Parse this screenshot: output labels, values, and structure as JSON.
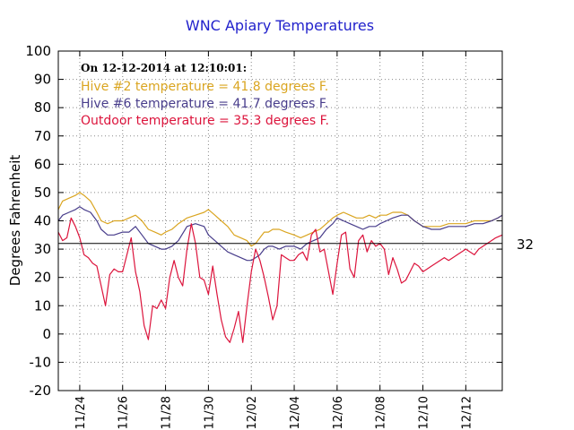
{
  "chart_data": {
    "type": "line",
    "title": "WNC Apiary Temperatures",
    "ylabel": "Degrees Fahrenheit",
    "xlabel": "",
    "ylim": [
      -20,
      100
    ],
    "yticks": [
      -20,
      -10,
      0,
      10,
      20,
      30,
      40,
      50,
      60,
      70,
      80,
      90,
      100
    ],
    "xlim": [
      0,
      20.7
    ],
    "xticks": [
      {
        "x": 1,
        "label": "11/24"
      },
      {
        "x": 3,
        "label": "11/26"
      },
      {
        "x": 5,
        "label": "11/28"
      },
      {
        "x": 7,
        "label": "11/30"
      },
      {
        "x": 9,
        "label": "12/02"
      },
      {
        "x": 11,
        "label": "12/04"
      },
      {
        "x": 13,
        "label": "12/06"
      },
      {
        "x": 15,
        "label": "12/08"
      },
      {
        "x": 17,
        "label": "12/10"
      },
      {
        "x": 19,
        "label": "12/12"
      }
    ],
    "grid": true,
    "reference_line": {
      "value": 32,
      "label": "32"
    },
    "annotation": {
      "timestamp": "On 12-12-2014 at 12:10:01:",
      "lines": [
        "Hive #2 temperature = 41.8 degrees F.",
        "Hive #6 temperature = 41.7 degrees F.",
        "Outdoor temperature = 35.3 degrees F."
      ]
    },
    "series": [
      {
        "name": "Hive #2",
        "color": "#daa520",
        "x": [
          0,
          0.2,
          0.5,
          0.8,
          1.0,
          1.2,
          1.5,
          1.8,
          2.0,
          2.3,
          2.6,
          3.0,
          3.3,
          3.6,
          3.9,
          4.2,
          4.5,
          4.8,
          5.0,
          5.3,
          5.6,
          6.0,
          6.4,
          6.8,
          7.0,
          7.3,
          7.6,
          7.9,
          8.2,
          8.5,
          8.8,
          9.0,
          9.2,
          9.4,
          9.6,
          9.8,
          10.0,
          10.3,
          10.6,
          11.0,
          11.3,
          11.6,
          11.9,
          12.2,
          12.5,
          12.8,
          13.0,
          13.3,
          13.6,
          13.9,
          14.2,
          14.5,
          14.8,
          15.0,
          15.3,
          15.6,
          16.0,
          16.3,
          16.6,
          17.0,
          17.4,
          17.8,
          18.2,
          18.6,
          19.0,
          19.4,
          19.8,
          20.2,
          20.5,
          20.7
        ],
        "values": [
          44,
          47,
          48,
          49,
          50,
          49,
          47,
          43,
          40,
          39,
          40,
          40,
          41,
          42,
          40,
          37,
          36,
          35,
          36,
          37,
          39,
          41,
          42,
          43,
          44,
          42,
          40,
          38,
          35,
          34,
          33,
          31,
          32,
          34,
          36,
          36,
          37,
          37,
          36,
          35,
          34,
          35,
          36,
          37,
          39,
          41,
          42,
          43,
          42,
          41,
          41,
          42,
          41,
          42,
          42,
          43,
          43,
          42,
          40,
          38,
          38,
          38,
          39,
          39,
          39,
          40,
          40,
          40,
          41,
          42
        ],
        "display": "41.8"
      },
      {
        "name": "Hive #6",
        "color": "#483d8b",
        "x": [
          0,
          0.2,
          0.5,
          0.8,
          1.0,
          1.2,
          1.5,
          1.8,
          2.0,
          2.3,
          2.6,
          3.0,
          3.3,
          3.6,
          3.9,
          4.2,
          4.5,
          4.8,
          5.0,
          5.3,
          5.6,
          6.0,
          6.4,
          6.8,
          7.0,
          7.3,
          7.6,
          7.9,
          8.2,
          8.5,
          8.8,
          9.0,
          9.2,
          9.4,
          9.6,
          9.8,
          10.0,
          10.3,
          10.6,
          11.0,
          11.3,
          11.6,
          11.9,
          12.2,
          12.5,
          12.8,
          13.0,
          13.3,
          13.6,
          13.9,
          14.2,
          14.5,
          14.8,
          15.0,
          15.3,
          15.6,
          16.0,
          16.3,
          16.6,
          17.0,
          17.4,
          17.8,
          18.2,
          18.6,
          19.0,
          19.4,
          19.8,
          20.2,
          20.5,
          20.7
        ],
        "values": [
          40,
          42,
          43,
          44,
          45,
          44,
          43,
          40,
          37,
          35,
          35,
          36,
          36,
          38,
          35,
          32,
          31,
          30,
          30,
          31,
          33,
          38,
          39,
          38,
          35,
          33,
          31,
          29,
          28,
          27,
          26,
          26,
          27,
          28,
          30,
          31,
          31,
          30,
          31,
          31,
          30,
          32,
          33,
          34,
          37,
          39,
          41,
          40,
          39,
          38,
          37,
          38,
          38,
          39,
          40,
          41,
          42,
          42,
          40,
          38,
          37,
          37,
          38,
          38,
          38,
          39,
          39,
          40,
          41,
          42
        ],
        "display": "41.7"
      },
      {
        "name": "Outdoor",
        "color": "#dc143c",
        "x": [
          0,
          0.2,
          0.4,
          0.6,
          0.8,
          1.0,
          1.2,
          1.4,
          1.6,
          1.8,
          2.0,
          2.2,
          2.4,
          2.6,
          2.8,
          3.0,
          3.2,
          3.4,
          3.6,
          3.8,
          4.0,
          4.2,
          4.4,
          4.6,
          4.8,
          5.0,
          5.2,
          5.4,
          5.6,
          5.8,
          6.0,
          6.2,
          6.4,
          6.6,
          6.8,
          7.0,
          7.2,
          7.4,
          7.6,
          7.8,
          8.0,
          8.2,
          8.4,
          8.6,
          8.8,
          9.0,
          9.2,
          9.4,
          9.6,
          9.8,
          10.0,
          10.2,
          10.4,
          10.6,
          10.8,
          11.0,
          11.2,
          11.4,
          11.6,
          11.8,
          12.0,
          12.2,
          12.4,
          12.6,
          12.8,
          13.0,
          13.2,
          13.4,
          13.6,
          13.8,
          14.0,
          14.2,
          14.4,
          14.6,
          14.8,
          15.0,
          15.2,
          15.4,
          15.6,
          15.8,
          16.0,
          16.2,
          16.4,
          16.6,
          16.8,
          17.0,
          17.2,
          17.4,
          17.6,
          17.8,
          18.0,
          18.2,
          18.4,
          18.6,
          18.8,
          19.0,
          19.2,
          19.4,
          19.6,
          19.8,
          20.0,
          20.2,
          20.4,
          20.7
        ],
        "values": [
          36,
          33,
          34,
          41,
          38,
          34,
          28,
          27,
          25,
          24,
          17,
          10,
          21,
          23,
          22,
          22,
          28,
          34,
          22,
          15,
          3,
          -2,
          10,
          9,
          12,
          9,
          20,
          26,
          20,
          17,
          30,
          39,
          32,
          20,
          19,
          14,
          24,
          14,
          5,
          -1,
          -3,
          2,
          8,
          -3,
          10,
          22,
          30,
          26,
          20,
          13,
          5,
          10,
          28,
          27,
          26,
          26,
          28,
          29,
          26,
          35,
          37,
          29,
          30,
          22,
          14,
          25,
          35,
          36,
          23,
          20,
          33,
          35,
          29,
          33,
          31,
          32,
          30,
          21,
          27,
          23,
          18,
          19,
          22,
          25,
          24,
          22,
          23,
          24,
          25,
          26,
          27,
          26,
          27,
          28,
          29,
          30,
          29,
          28,
          30,
          31,
          32,
          33,
          34,
          35
        ],
        "display": "35.3"
      }
    ]
  }
}
